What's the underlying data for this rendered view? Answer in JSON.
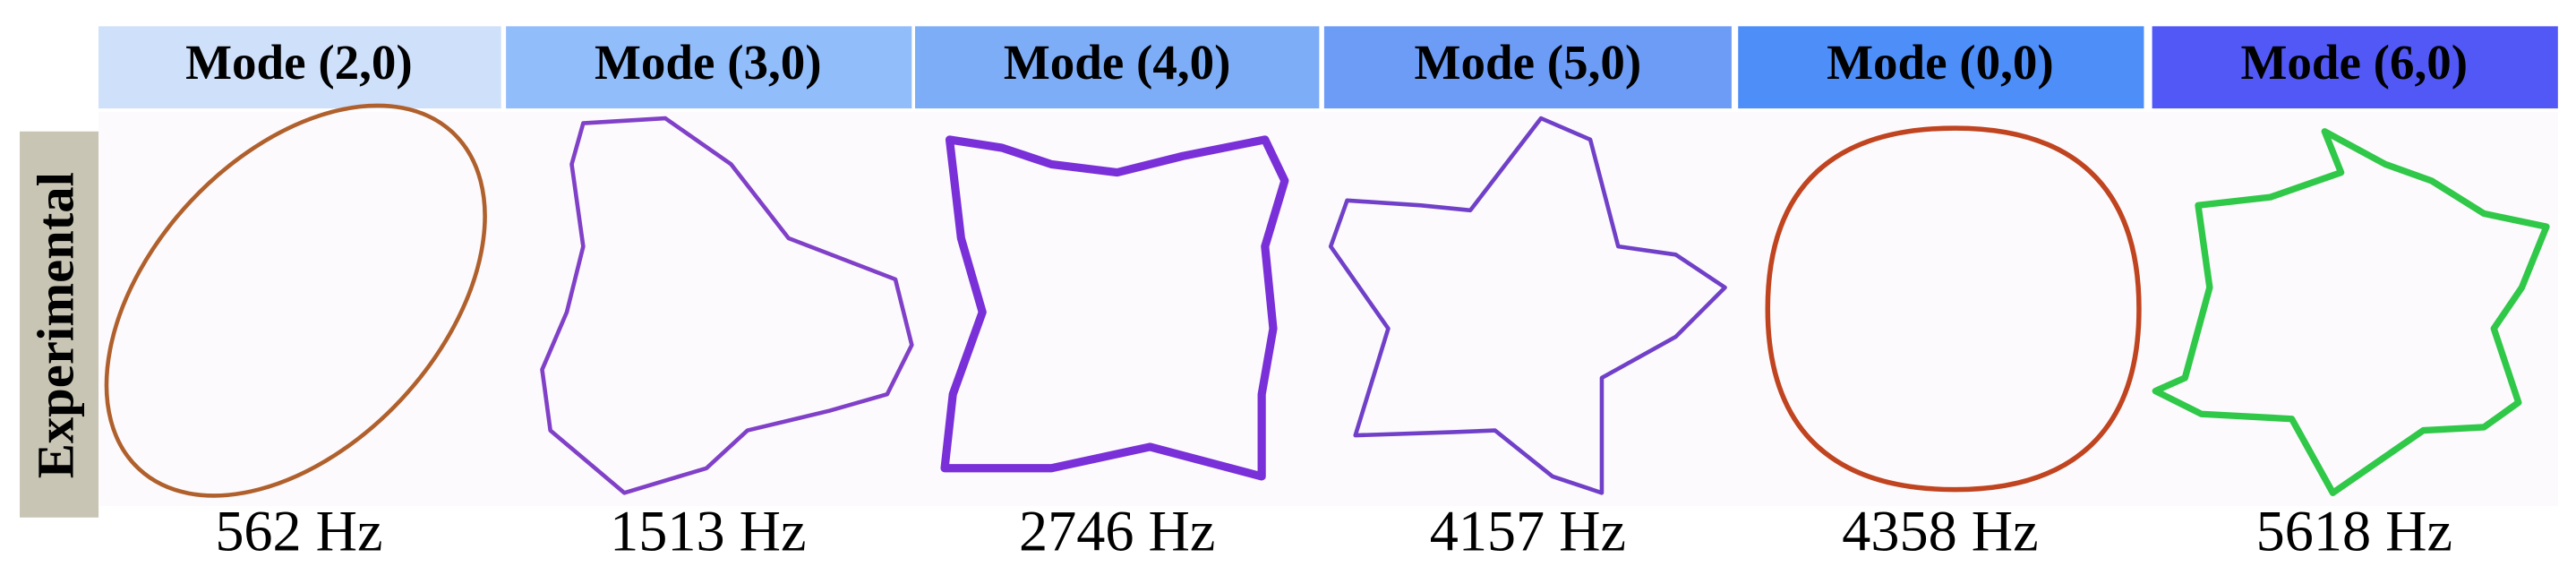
{
  "row_label": "Experimental",
  "panels": [
    {
      "mode": "Mode (2,0)",
      "frequency": "562 Hz"
    },
    {
      "mode": "Mode (3,0)",
      "frequency": "1513 Hz"
    },
    {
      "mode": "Mode (4,0)",
      "frequency": "2746 Hz"
    },
    {
      "mode": "Mode (5,0)",
      "frequency": "4157 Hz"
    },
    {
      "mode": "Mode (0,0)",
      "frequency": "4358 Hz"
    },
    {
      "mode": "Mode (6,0)",
      "frequency": "5618 Hz"
    }
  ]
}
